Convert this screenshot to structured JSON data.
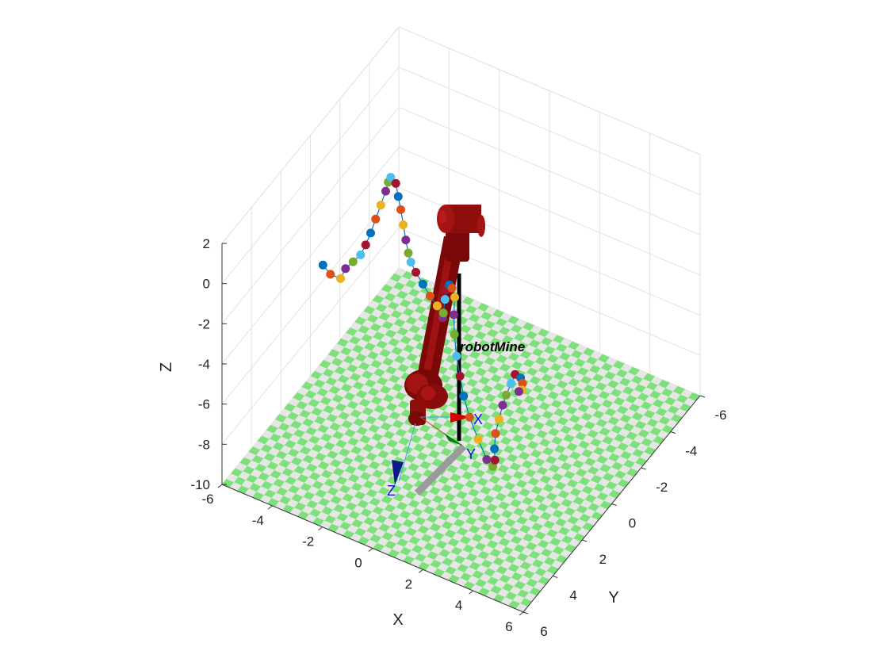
{
  "chart_data": {
    "type": "scatter3d",
    "robot_name": "robotMine",
    "xlabel": "X",
    "ylabel": "Y",
    "zlabel": "Z",
    "xlim": [
      -6,
      6
    ],
    "ylim": [
      -6,
      6
    ],
    "zlim": [
      -10,
      2
    ],
    "x_ticks": [
      "-6",
      "-4",
      "-2",
      "0",
      "2",
      "4",
      "6"
    ],
    "y_ticks": [
      "-6",
      "-4",
      "-2",
      "0",
      "2",
      "4",
      "6"
    ],
    "z_ticks": [
      "-10",
      "-8",
      "-6",
      "-4",
      "-2",
      "0",
      "2"
    ],
    "tool_frame_labels": {
      "x": "X",
      "y": "Y",
      "z": "Z"
    },
    "grid": true,
    "floor": "checkerboard",
    "colors": {
      "floor_a": "#7ee07a",
      "floor_b": "#e6e6e6",
      "robot": "#8b0a0a",
      "path_line": "#0f74c0",
      "frame_x": "#cc0000",
      "frame_y": "#0a7a0a",
      "frame_z": "#0a1a8a",
      "markers": [
        "#0072bd",
        "#d95319",
        "#edb120",
        "#7e2f8e",
        "#77ac30",
        "#4dbeee",
        "#a2142f"
      ]
    },
    "series": [
      {
        "points": [
          [
            -5.5,
            0.0,
            -4.2
          ],
          [
            -5.2,
            0.0,
            -4.5
          ],
          [
            -4.8,
            0.0,
            -4.5
          ],
          [
            -4.6,
            0.0,
            -3.9
          ],
          [
            -4.3,
            0.0,
            -3.4
          ],
          [
            -4.0,
            0.0,
            -2.9
          ],
          [
            -3.8,
            0.0,
            -2.3
          ],
          [
            -3.6,
            0.0,
            -1.6
          ],
          [
            -3.4,
            0.0,
            -0.8
          ],
          [
            -3.2,
            0.0,
            0.0
          ],
          [
            -3.0,
            0.0,
            0.8
          ],
          [
            -2.9,
            0.0,
            1.3
          ],
          [
            -2.8,
            0.0,
            1.6
          ],
          [
            -2.6,
            0.0,
            1.4
          ],
          [
            -2.5,
            0.0,
            0.8
          ],
          [
            -2.4,
            0.0,
            0.2
          ],
          [
            -2.3,
            0.0,
            -0.5
          ],
          [
            -2.2,
            0.0,
            -1.2
          ],
          [
            -2.1,
            0.0,
            -1.8
          ],
          [
            -2.0,
            0.0,
            -2.2
          ],
          [
            -1.8,
            0.0,
            -2.6
          ],
          [
            -1.4,
            0.2,
            -2.8
          ],
          [
            -1.0,
            0.4,
            -3.0
          ],
          [
            -0.6,
            0.6,
            -3.1
          ],
          [
            -0.2,
            0.9,
            -3.2
          ]
        ]
      },
      {
        "points": [
          [
            -0.2,
            0.9,
            -3.2
          ],
          [
            0.0,
            1.2,
            -2.6
          ],
          [
            0.3,
            1.6,
            -1.4
          ],
          [
            0.6,
            2.0,
            -0.4
          ],
          [
            1.0,
            2.5,
            0.5
          ],
          [
            1.4,
            3.0,
            1.0
          ],
          [
            1.8,
            3.5,
            1.2
          ],
          [
            2.0,
            3.9,
            0.8
          ],
          [
            2.2,
            4.2,
            0.2
          ],
          [
            2.4,
            4.4,
            -0.6
          ],
          [
            2.6,
            4.5,
            -1.4
          ],
          [
            2.8,
            4.6,
            -2.2
          ],
          [
            3.1,
            4.7,
            -3.0
          ],
          [
            3.5,
            4.8,
            -3.8
          ],
          [
            3.9,
            4.9,
            -4.5
          ],
          [
            4.2,
            5.0,
            -4.6
          ],
          [
            4.4,
            5.2,
            -4.0
          ]
        ]
      },
      {
        "points": [
          [
            4.4,
            5.2,
            -4.0
          ],
          [
            4.5,
            5.4,
            -3.2
          ],
          [
            4.6,
            5.5,
            -2.3
          ],
          [
            4.8,
            5.6,
            -1.4
          ],
          [
            5.0,
            5.7,
            -0.5
          ],
          [
            5.2,
            5.8,
            0.2
          ],
          [
            5.4,
            5.8,
            0.9
          ],
          [
            5.5,
            5.7,
            1.3
          ],
          [
            5.6,
            5.5,
            1.0
          ],
          [
            5.5,
            5.2,
            0.4
          ],
          [
            5.3,
            4.9,
            -0.3
          ],
          [
            5.0,
            4.6,
            -0.8
          ]
        ]
      }
    ]
  }
}
